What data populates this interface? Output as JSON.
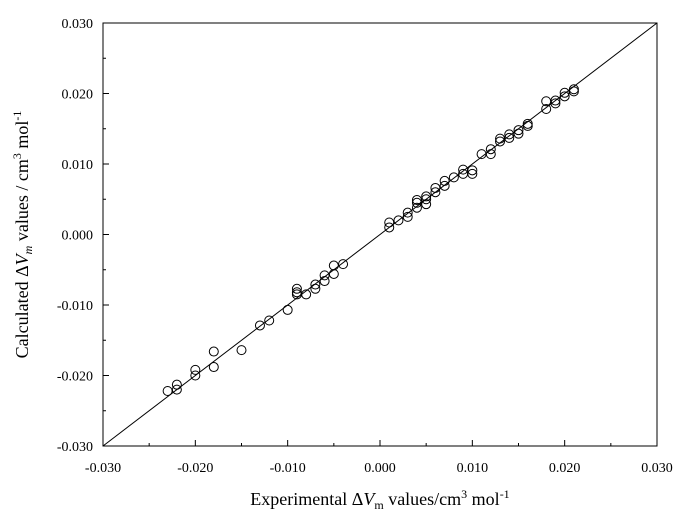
{
  "chart_data": {
    "type": "scatter",
    "title": "",
    "xlabel": {
      "pre": "Experimental ",
      "delta": "Δ",
      "var": "V",
      "sub": "m",
      "post": " values/cm",
      "sup": "3",
      "mol": " mol",
      "molsup": "-1"
    },
    "ylabel": {
      "pre": "Calculated ",
      "delta": "Δ",
      "var": "V",
      "sub": "m",
      "post": " values / cm",
      "sup": "3",
      "mol": " mol",
      "molsup": "-1"
    },
    "xlim": [
      -0.03,
      0.03
    ],
    "ylim": [
      -0.03,
      0.03
    ],
    "xticks": [
      "-0.030",
      "-0.020",
      "-0.010",
      "0.000",
      "0.010",
      "0.020",
      "0.030"
    ],
    "yticks": [
      "-0.030",
      "-0.020",
      "-0.010",
      "0.000",
      "0.010",
      "0.020",
      "0.030"
    ],
    "reference_line": {
      "from": [
        -0.03,
        -0.03
      ],
      "to": [
        0.03,
        0.03
      ]
    },
    "grid": false,
    "legend": "none",
    "marker": "open-circle",
    "points": [
      {
        "x": -0.023,
        "y": -0.0222
      },
      {
        "x": -0.022,
        "y": -0.022
      },
      {
        "x": -0.022,
        "y": -0.0213
      },
      {
        "x": -0.02,
        "y": -0.02
      },
      {
        "x": -0.02,
        "y": -0.0192
      },
      {
        "x": -0.018,
        "y": -0.0188
      },
      {
        "x": -0.018,
        "y": -0.0166
      },
      {
        "x": -0.015,
        "y": -0.0164
      },
      {
        "x": -0.013,
        "y": -0.0129
      },
      {
        "x": -0.012,
        "y": -0.0122
      },
      {
        "x": -0.01,
        "y": -0.0107
      },
      {
        "x": -0.009,
        "y": -0.0085
      },
      {
        "x": -0.009,
        "y": -0.0082
      },
      {
        "x": -0.009,
        "y": -0.0077
      },
      {
        "x": -0.008,
        "y": -0.0085
      },
      {
        "x": -0.007,
        "y": -0.0077
      },
      {
        "x": -0.007,
        "y": -0.0071
      },
      {
        "x": -0.006,
        "y": -0.0066
      },
      {
        "x": -0.006,
        "y": -0.0058
      },
      {
        "x": -0.005,
        "y": -0.0056
      },
      {
        "x": -0.005,
        "y": -0.0044
      },
      {
        "x": -0.004,
        "y": -0.0042
      },
      {
        "x": 0.001,
        "y": 0.001
      },
      {
        "x": 0.001,
        "y": 0.0017
      },
      {
        "x": 0.002,
        "y": 0.002
      },
      {
        "x": 0.003,
        "y": 0.0025
      },
      {
        "x": 0.003,
        "y": 0.0031
      },
      {
        "x": 0.004,
        "y": 0.0038
      },
      {
        "x": 0.004,
        "y": 0.0045
      },
      {
        "x": 0.004,
        "y": 0.0049
      },
      {
        "x": 0.005,
        "y": 0.0043
      },
      {
        "x": 0.005,
        "y": 0.005
      },
      {
        "x": 0.005,
        "y": 0.0054
      },
      {
        "x": 0.006,
        "y": 0.006
      },
      {
        "x": 0.006,
        "y": 0.0066
      },
      {
        "x": 0.007,
        "y": 0.0069
      },
      {
        "x": 0.007,
        "y": 0.0076
      },
      {
        "x": 0.008,
        "y": 0.0081
      },
      {
        "x": 0.009,
        "y": 0.0086
      },
      {
        "x": 0.009,
        "y": 0.0092
      },
      {
        "x": 0.01,
        "y": 0.0086
      },
      {
        "x": 0.01,
        "y": 0.0091
      },
      {
        "x": 0.011,
        "y": 0.0114
      },
      {
        "x": 0.012,
        "y": 0.0114
      },
      {
        "x": 0.012,
        "y": 0.0121
      },
      {
        "x": 0.013,
        "y": 0.0132
      },
      {
        "x": 0.013,
        "y": 0.0136
      },
      {
        "x": 0.014,
        "y": 0.0137
      },
      {
        "x": 0.014,
        "y": 0.0142
      },
      {
        "x": 0.015,
        "y": 0.0143
      },
      {
        "x": 0.015,
        "y": 0.0148
      },
      {
        "x": 0.016,
        "y": 0.0154
      },
      {
        "x": 0.016,
        "y": 0.0157
      },
      {
        "x": 0.018,
        "y": 0.0178
      },
      {
        "x": 0.018,
        "y": 0.0189
      },
      {
        "x": 0.019,
        "y": 0.0186
      },
      {
        "x": 0.019,
        "y": 0.019
      },
      {
        "x": 0.02,
        "y": 0.0196
      },
      {
        "x": 0.02,
        "y": 0.0201
      },
      {
        "x": 0.021,
        "y": 0.0203
      },
      {
        "x": 0.021,
        "y": 0.0206
      }
    ],
    "colors": {
      "marker": "#000000",
      "axis": "#000000",
      "line": "#000000",
      "background": "#ffffff"
    }
  }
}
